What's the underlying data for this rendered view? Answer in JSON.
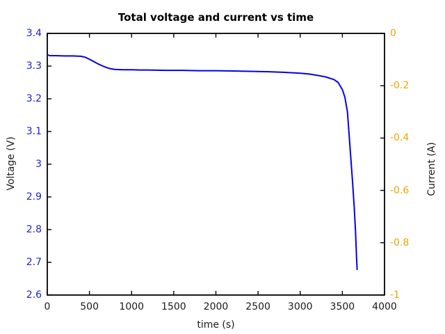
{
  "figure": {
    "background": "#ffffff"
  },
  "chart_data": {
    "type": "line",
    "title": "Total voltage and current vs time",
    "xlabel": "time (s)",
    "ylabel_left": "Voltage (V)",
    "ylabel_right": "Current (A)",
    "xlim": [
      0,
      4000
    ],
    "ylim_left": [
      2.6,
      3.4
    ],
    "ylim_right": [
      -1,
      0
    ],
    "grid": false,
    "legend": "none",
    "xticks": {
      "values": [
        0,
        500,
        1000,
        1500,
        2000,
        2500,
        3000,
        3500,
        4000
      ],
      "labels": [
        "0",
        "500",
        "1000",
        "1500",
        "2000",
        "2500",
        "3000",
        "3500",
        "4000"
      ]
    },
    "yticks_left": {
      "values": [
        3.4,
        3.3,
        3.2,
        3.1,
        3.0,
        2.9,
        2.8,
        2.7,
        2.6
      ],
      "labels": [
        "3.4",
        "3.3",
        "3.2",
        "3.1",
        "3",
        "2.9",
        "2.8",
        "2.7",
        "2.6"
      ]
    },
    "yticks_right": {
      "values": [
        0,
        -0.2,
        -0.4,
        -0.6,
        -0.8,
        -1
      ],
      "labels": [
        "0",
        "-0.2",
        "-0.4",
        "-0.6",
        "-0.8",
        "-1"
      ]
    },
    "colors": {
      "voltage_line": "#0000ee",
      "voltage_tick_labels": "#2222cc",
      "current_tick_labels": "#efa400",
      "frame": "#000000"
    },
    "series": [
      {
        "name": "Total voltage",
        "axis": "left",
        "color": "#0000ee",
        "points": [
          [
            0,
            3.335
          ],
          [
            30,
            3.332
          ],
          [
            100,
            3.332
          ],
          [
            200,
            3.331
          ],
          [
            300,
            3.331
          ],
          [
            400,
            3.33
          ],
          [
            450,
            3.327
          ],
          [
            500,
            3.321
          ],
          [
            550,
            3.314
          ],
          [
            600,
            3.307
          ],
          [
            650,
            3.301
          ],
          [
            700,
            3.296
          ],
          [
            750,
            3.292
          ],
          [
            800,
            3.29
          ],
          [
            900,
            3.289
          ],
          [
            1000,
            3.289
          ],
          [
            1100,
            3.288
          ],
          [
            1200,
            3.288
          ],
          [
            1400,
            3.287
          ],
          [
            1600,
            3.287
          ],
          [
            1800,
            3.286
          ],
          [
            2000,
            3.286
          ],
          [
            2200,
            3.285
          ],
          [
            2400,
            3.284
          ],
          [
            2600,
            3.283
          ],
          [
            2800,
            3.281
          ],
          [
            3000,
            3.278
          ],
          [
            3100,
            3.276
          ],
          [
            3200,
            3.272
          ],
          [
            3300,
            3.267
          ],
          [
            3400,
            3.259
          ],
          [
            3450,
            3.25
          ],
          [
            3500,
            3.228
          ],
          [
            3530,
            3.205
          ],
          [
            3560,
            3.16
          ],
          [
            3580,
            3.09
          ],
          [
            3600,
            3.02
          ],
          [
            3620,
            2.95
          ],
          [
            3640,
            2.87
          ],
          [
            3655,
            2.8
          ],
          [
            3668,
            2.72
          ],
          [
            3675,
            2.678
          ]
        ]
      }
    ]
  }
}
